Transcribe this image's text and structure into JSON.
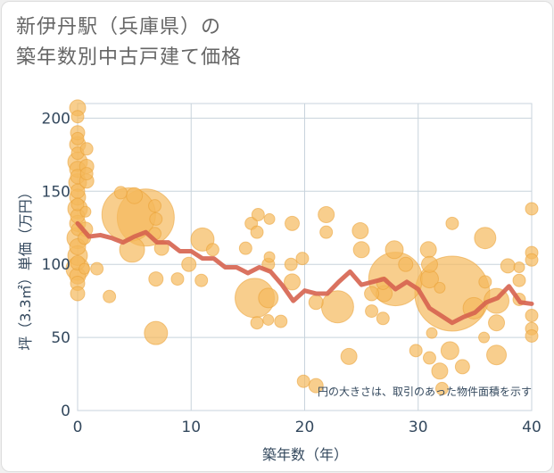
{
  "title_line1": "新伊丹駅（兵庫県）の",
  "title_line2": "築年数別中古戸建て価格",
  "chart_data": {
    "type": "scatter",
    "xlabel": "築年数（年）",
    "ylabel": "坪（3.3㎡）単価（万円）",
    "xlim": [
      0,
      40
    ],
    "ylim": [
      0,
      210
    ],
    "xticks": [
      0,
      10,
      20,
      30,
      40
    ],
    "yticks": [
      0,
      50,
      100,
      150,
      200
    ],
    "grid": true,
    "annotation": "円の大きさは、取引のあった物件面積を示す",
    "colors": {
      "bubble": "#f5b95c",
      "bubble_edge": "#eaa035",
      "line": "#d6634f",
      "grid": "#c8d3dc",
      "axis_text": "#34495e"
    },
    "average_line": {
      "x": [
        0,
        1,
        2,
        3,
        4,
        5,
        6,
        7,
        8,
        9,
        10,
        11,
        12,
        13,
        14,
        15,
        16,
        17,
        18,
        19,
        20,
        21,
        22,
        23,
        24,
        25,
        26,
        27,
        28,
        29,
        30,
        31,
        32,
        33,
        34,
        35,
        36,
        37,
        38,
        39,
        40
      ],
      "y": [
        128,
        119,
        120,
        118,
        115,
        119,
        122,
        115,
        115,
        109,
        109,
        104,
        104,
        98,
        98,
        94,
        98,
        95,
        86,
        75,
        82,
        80,
        80,
        88,
        95,
        86,
        88,
        90,
        83,
        88,
        83,
        70,
        65,
        60,
        64,
        67,
        74,
        77,
        85,
        74,
        73
      ]
    },
    "points": [
      {
        "x": 0,
        "y": 207,
        "size": 9
      },
      {
        "x": 0,
        "y": 201,
        "size": 7
      },
      {
        "x": 0,
        "y": 190,
        "size": 8
      },
      {
        "x": 0,
        "y": 186,
        "size": 7
      },
      {
        "x": 0,
        "y": 182,
        "size": 9
      },
      {
        "x": 0,
        "y": 176,
        "size": 7
      },
      {
        "x": 0,
        "y": 170,
        "size": 11
      },
      {
        "x": 0,
        "y": 165,
        "size": 9
      },
      {
        "x": 0,
        "y": 160,
        "size": 8
      },
      {
        "x": 0,
        "y": 156,
        "size": 10
      },
      {
        "x": 0,
        "y": 150,
        "size": 8
      },
      {
        "x": 0,
        "y": 146,
        "size": 9
      },
      {
        "x": 0,
        "y": 141,
        "size": 7
      },
      {
        "x": 0,
        "y": 138,
        "size": 11
      },
      {
        "x": 0,
        "y": 133,
        "size": 8
      },
      {
        "x": 0,
        "y": 128,
        "size": 9
      },
      {
        "x": 0,
        "y": 124,
        "size": 7
      },
      {
        "x": 0,
        "y": 118,
        "size": 12
      },
      {
        "x": 0,
        "y": 112,
        "size": 9
      },
      {
        "x": 0,
        "y": 106,
        "size": 11
      },
      {
        "x": 0,
        "y": 101,
        "size": 8
      },
      {
        "x": 0,
        "y": 97,
        "size": 13
      },
      {
        "x": 0,
        "y": 92,
        "size": 9
      },
      {
        "x": 0,
        "y": 87,
        "size": 8
      },
      {
        "x": 0,
        "y": 80,
        "size": 8
      },
      {
        "x": 0.8,
        "y": 179,
        "size": 7
      },
      {
        "x": 0.8,
        "y": 167,
        "size": 8
      },
      {
        "x": 0.8,
        "y": 162,
        "size": 7
      },
      {
        "x": 0.8,
        "y": 157,
        "size": 8
      },
      {
        "x": 0.7,
        "y": 136,
        "size": 6
      },
      {
        "x": 0.7,
        "y": 124,
        "size": 8
      },
      {
        "x": 0.6,
        "y": 118,
        "size": 7
      },
      {
        "x": 0.6,
        "y": 97,
        "size": 6
      },
      {
        "x": 1.7,
        "y": 97,
        "size": 7
      },
      {
        "x": 2.8,
        "y": 78,
        "size": 7
      },
      {
        "x": 3.8,
        "y": 149,
        "size": 7
      },
      {
        "x": 4.5,
        "y": 134,
        "size": 30
      },
      {
        "x": 5,
        "y": 147,
        "size": 9
      },
      {
        "x": 4.8,
        "y": 110,
        "size": 14
      },
      {
        "x": 6,
        "y": 132,
        "size": 32
      },
      {
        "x": 6.8,
        "y": 140,
        "size": 7
      },
      {
        "x": 6.9,
        "y": 131,
        "size": 7
      },
      {
        "x": 6.8,
        "y": 121,
        "size": 7
      },
      {
        "x": 7.4,
        "y": 111,
        "size": 8
      },
      {
        "x": 6.9,
        "y": 90,
        "size": 8
      },
      {
        "x": 6.9,
        "y": 53,
        "size": 13
      },
      {
        "x": 8.8,
        "y": 90,
        "size": 7
      },
      {
        "x": 9.8,
        "y": 100,
        "size": 8
      },
      {
        "x": 11,
        "y": 117,
        "size": 13
      },
      {
        "x": 11.9,
        "y": 110,
        "size": 7
      },
      {
        "x": 10.9,
        "y": 89,
        "size": 7
      },
      {
        "x": 14.8,
        "y": 111,
        "size": 7
      },
      {
        "x": 15.3,
        "y": 128,
        "size": 7
      },
      {
        "x": 15.9,
        "y": 134,
        "size": 7
      },
      {
        "x": 15.8,
        "y": 122,
        "size": 7
      },
      {
        "x": 16.9,
        "y": 131,
        "size": 6
      },
      {
        "x": 15.6,
        "y": 77,
        "size": 22
      },
      {
        "x": 16.8,
        "y": 77,
        "size": 11
      },
      {
        "x": 16.9,
        "y": 105,
        "size": 6
      },
      {
        "x": 16.8,
        "y": 100,
        "size": 7
      },
      {
        "x": 15.8,
        "y": 60,
        "size": 7
      },
      {
        "x": 16.8,
        "y": 62,
        "size": 6
      },
      {
        "x": 17.9,
        "y": 61,
        "size": 7
      },
      {
        "x": 18.9,
        "y": 128,
        "size": 8
      },
      {
        "x": 18.8,
        "y": 100,
        "size": 7
      },
      {
        "x": 18.9,
        "y": 88,
        "size": 9
      },
      {
        "x": 19.8,
        "y": 104,
        "size": 7
      },
      {
        "x": 21.9,
        "y": 134,
        "size": 9
      },
      {
        "x": 21.9,
        "y": 122,
        "size": 7
      },
      {
        "x": 21,
        "y": 74,
        "size": 8
      },
      {
        "x": 19.9,
        "y": 20,
        "size": 7
      },
      {
        "x": 21,
        "y": 17,
        "size": 8
      },
      {
        "x": 22.9,
        "y": 71,
        "size": 18
      },
      {
        "x": 23.9,
        "y": 37,
        "size": 9
      },
      {
        "x": 24.9,
        "y": 123,
        "size": 9
      },
      {
        "x": 25,
        "y": 110,
        "size": 9
      },
      {
        "x": 25.9,
        "y": 80,
        "size": 8
      },
      {
        "x": 25.9,
        "y": 68,
        "size": 7
      },
      {
        "x": 26.9,
        "y": 63,
        "size": 7
      },
      {
        "x": 26.9,
        "y": 87,
        "size": 7
      },
      {
        "x": 27,
        "y": 80,
        "size": 9
      },
      {
        "x": 27.9,
        "y": 110,
        "size": 10
      },
      {
        "x": 28,
        "y": 90,
        "size": 30
      },
      {
        "x": 28.9,
        "y": 100,
        "size": 8
      },
      {
        "x": 29.8,
        "y": 41,
        "size": 7
      },
      {
        "x": 30.9,
        "y": 110,
        "size": 9
      },
      {
        "x": 31,
        "y": 100,
        "size": 9
      },
      {
        "x": 31,
        "y": 90,
        "size": 10
      },
      {
        "x": 31.2,
        "y": 53,
        "size": 6
      },
      {
        "x": 31,
        "y": 36,
        "size": 7
      },
      {
        "x": 31.9,
        "y": 84,
        "size": 6
      },
      {
        "x": 31.9,
        "y": 27,
        "size": 9
      },
      {
        "x": 32.1,
        "y": 15,
        "size": 7
      },
      {
        "x": 33,
        "y": 80,
        "size": 42
      },
      {
        "x": 33,
        "y": 128,
        "size": 7
      },
      {
        "x": 32.8,
        "y": 41,
        "size": 10
      },
      {
        "x": 33.9,
        "y": 30,
        "size": 8
      },
      {
        "x": 34.9,
        "y": 70,
        "size": 12
      },
      {
        "x": 35.9,
        "y": 118,
        "size": 12
      },
      {
        "x": 35.9,
        "y": 88,
        "size": 7
      },
      {
        "x": 35.8,
        "y": 50,
        "size": 6
      },
      {
        "x": 36.9,
        "y": 75,
        "size": 14
      },
      {
        "x": 36.9,
        "y": 60,
        "size": 9
      },
      {
        "x": 37.9,
        "y": 99,
        "size": 8
      },
      {
        "x": 36.9,
        "y": 38,
        "size": 11
      },
      {
        "x": 38.9,
        "y": 98,
        "size": 6
      },
      {
        "x": 38.9,
        "y": 89,
        "size": 7
      },
      {
        "x": 38.9,
        "y": 76,
        "size": 7
      },
      {
        "x": 40,
        "y": 138,
        "size": 7
      },
      {
        "x": 40,
        "y": 108,
        "size": 7
      },
      {
        "x": 40,
        "y": 103,
        "size": 7
      },
      {
        "x": 40,
        "y": 65,
        "size": 7
      },
      {
        "x": 40,
        "y": 56,
        "size": 7
      },
      {
        "x": 40,
        "y": 51,
        "size": 7
      }
    ]
  }
}
